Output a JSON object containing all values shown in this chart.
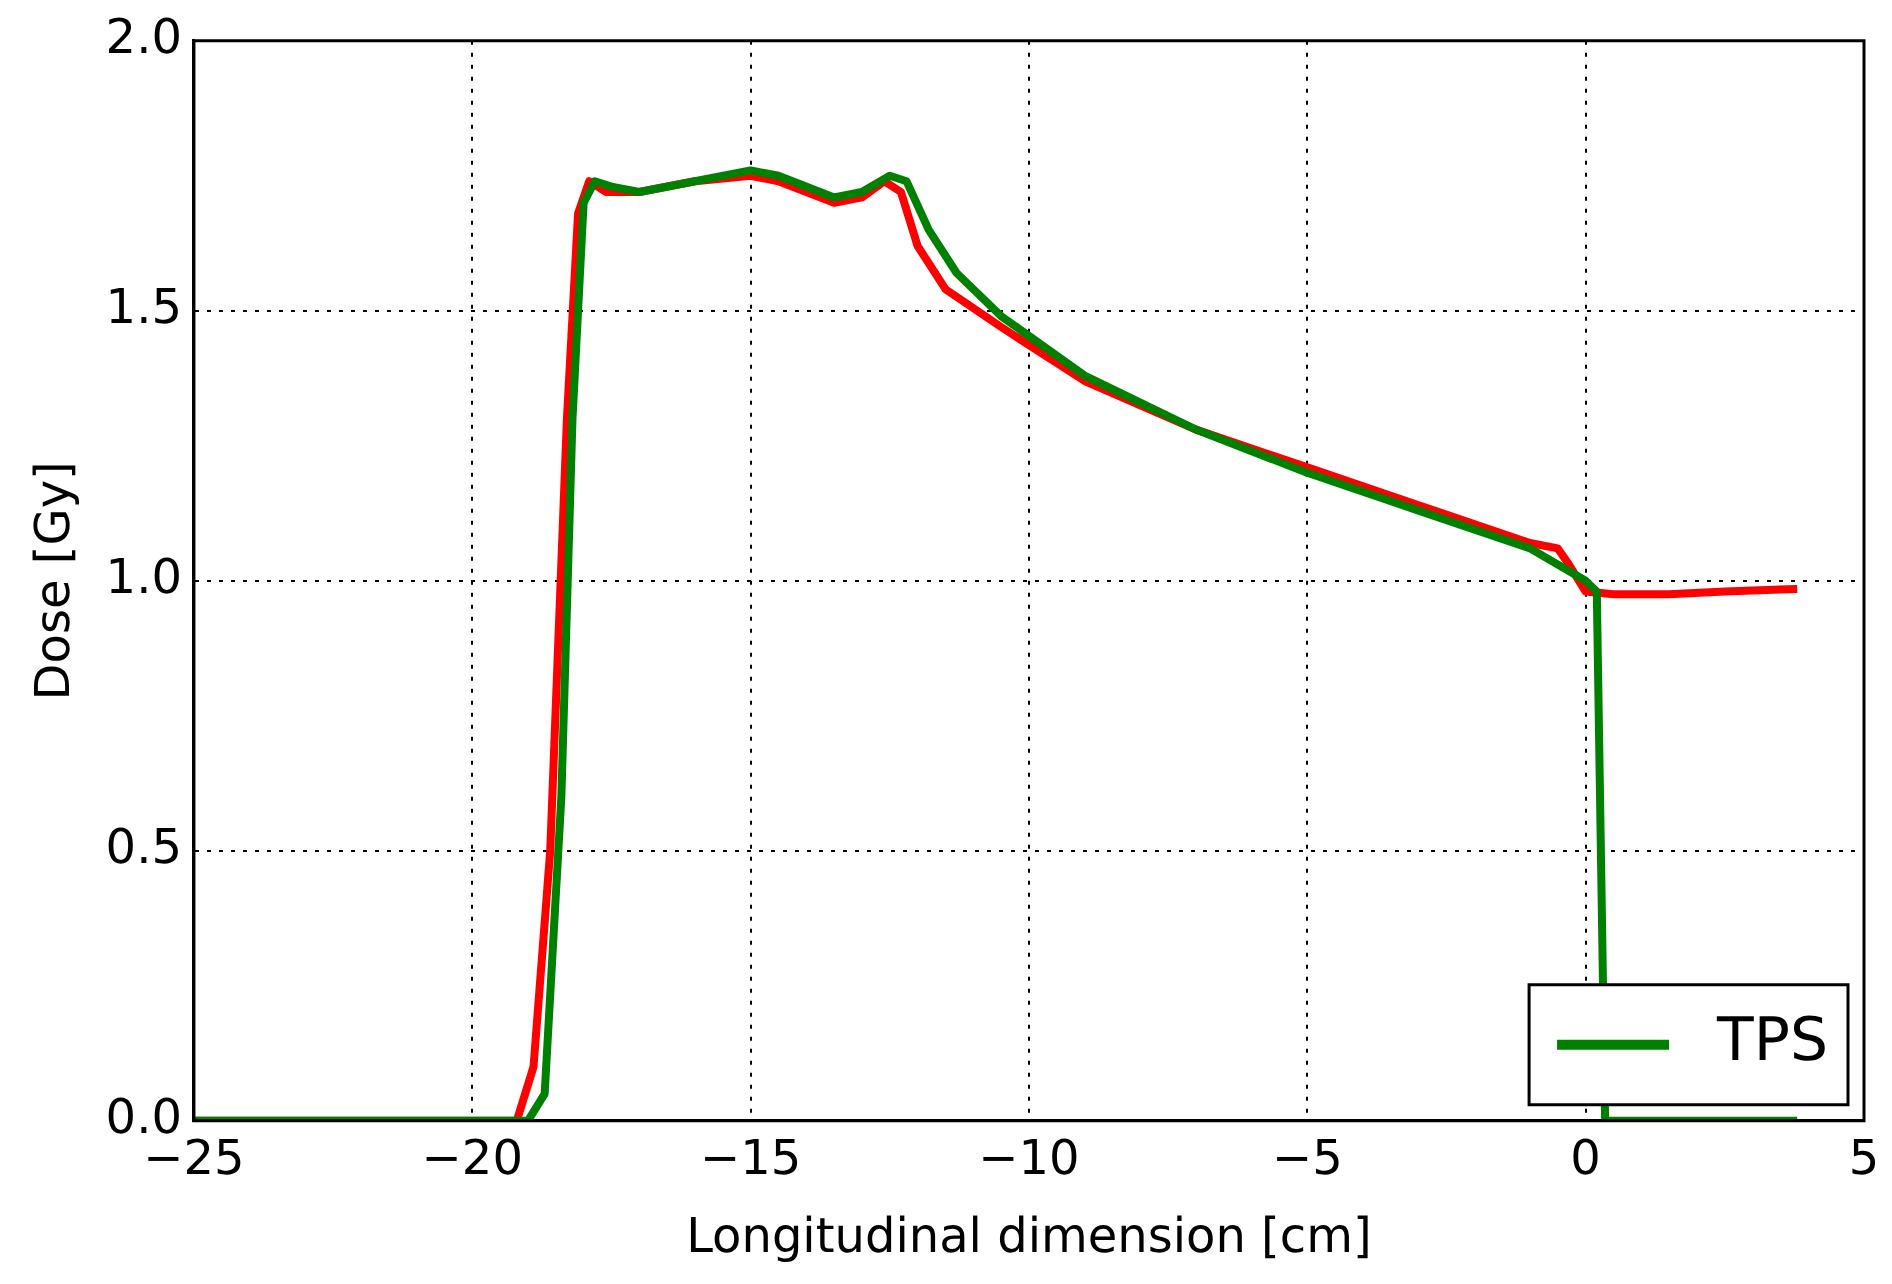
{
  "chart_data": {
    "type": "line",
    "xlabel": "Longitudinal dimension [cm]",
    "ylabel": "Dose [Gy]",
    "xlim": [
      -25,
      5
    ],
    "xticks": [
      {
        "value": -25,
        "label": "−25"
      },
      {
        "value": -20,
        "label": "−20"
      },
      {
        "value": -15,
        "label": "−15"
      },
      {
        "value": -10,
        "label": "−10"
      },
      {
        "value": -5,
        "label": "−5"
      },
      0,
      5
    ],
    "ylim": [
      0,
      2
    ],
    "yticks": [
      {
        "value": 0,
        "label": "0.0"
      },
      {
        "value": 0.5,
        "label": "0.5"
      },
      {
        "value": 1,
        "label": "1.0"
      },
      {
        "value": 1.5,
        "label": "1.5"
      },
      {
        "value": 2,
        "label": "2.0"
      }
    ],
    "grid": true,
    "legend": "bottom right",
    "line_style": "solid",
    "marker": "none",
    "series": [
      {
        "name": "TPS",
        "color": "#008000",
        "x": [
          -25,
          -19,
          -18.7,
          -18.4,
          -18.2,
          -18.0,
          -17.8,
          -17.5,
          -17,
          -16,
          -15,
          -14.5,
          -13.5,
          -13,
          -12.5,
          -12.2,
          -11.8,
          -11.3,
          -10.5,
          -9,
          -7,
          -5,
          -3,
          -1,
          0,
          0.2,
          0.35,
          3.8
        ],
        "values": [
          0,
          0,
          0.05,
          0.6,
          1.3,
          1.7,
          1.74,
          1.73,
          1.72,
          1.74,
          1.76,
          1.75,
          1.71,
          1.72,
          1.75,
          1.74,
          1.65,
          1.57,
          1.49,
          1.38,
          1.28,
          1.2,
          1.13,
          1.06,
          1.0,
          0.98,
          0,
          0
        ]
      },
      {
        "color": "#ff0000",
        "x": [
          -25,
          -19.2,
          -18.9,
          -18.6,
          -18.3,
          -18.1,
          -17.9,
          -17.6,
          -17,
          -16,
          -15,
          -14.5,
          -13.5,
          -13,
          -12.6,
          -12.3,
          -12,
          -11.5,
          -10.5,
          -9,
          -7,
          -5,
          -3,
          -1,
          -0.5,
          -0.3,
          0,
          0.5,
          1.5,
          2.5,
          3.8
        ],
        "values": [
          0,
          0,
          0.1,
          0.5,
          1.3,
          1.68,
          1.74,
          1.72,
          1.72,
          1.74,
          1.75,
          1.74,
          1.7,
          1.71,
          1.74,
          1.72,
          1.62,
          1.54,
          1.47,
          1.37,
          1.28,
          1.21,
          1.14,
          1.07,
          1.06,
          1.03,
          0.98,
          0.975,
          0.975,
          0.98,
          0.985
        ]
      }
    ]
  }
}
